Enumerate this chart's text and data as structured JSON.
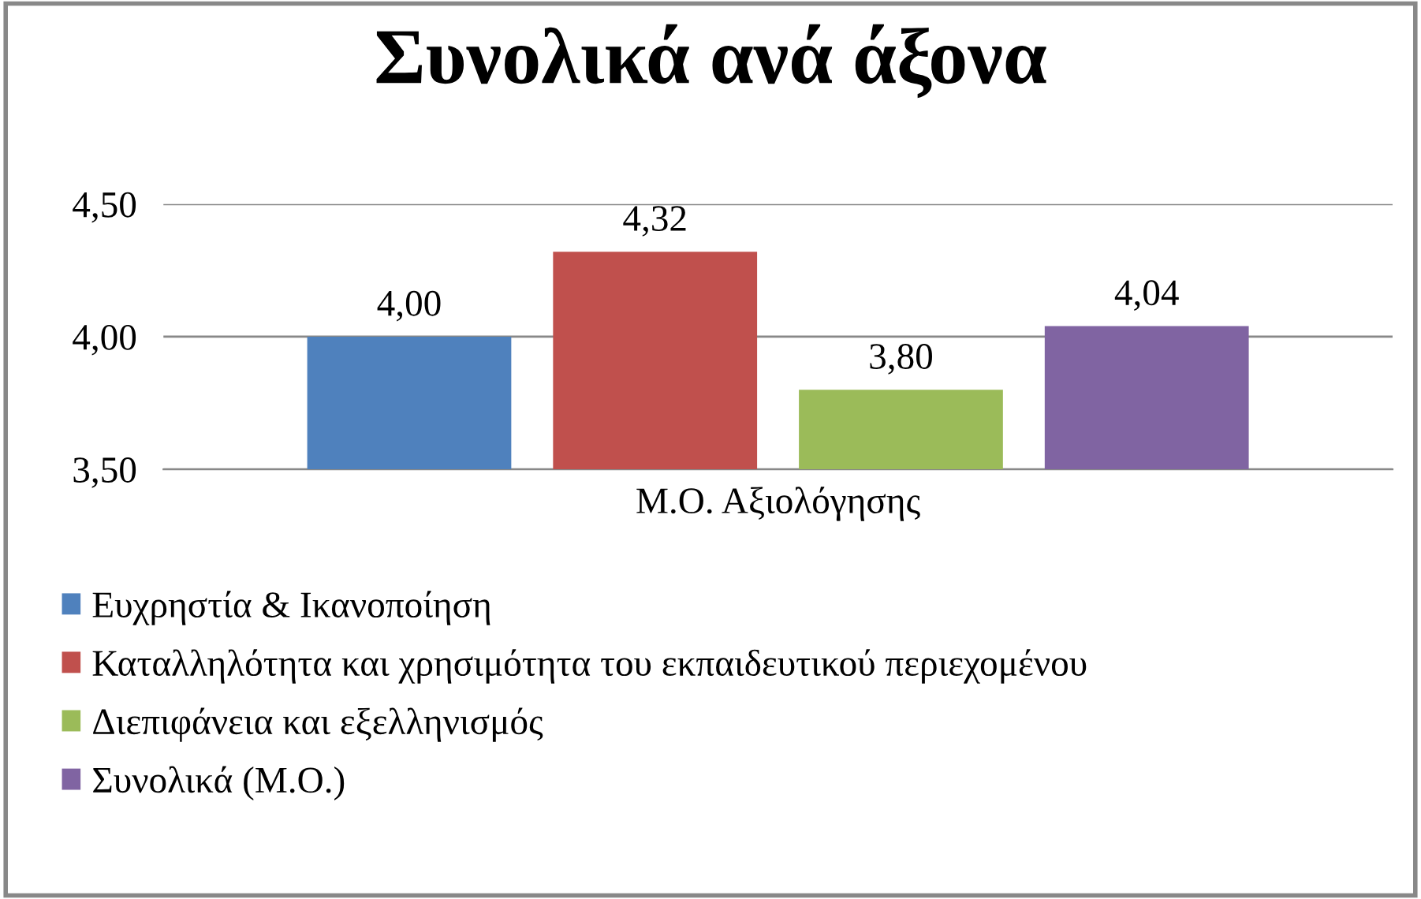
{
  "chart_data": {
    "type": "bar",
    "title": "Συνολικά ανά άξονα",
    "categories": [
      "Μ.Ο. Αξιολόγησης"
    ],
    "series": [
      {
        "name": "Ευχρηστία & Ικανοποίηση",
        "color": "#4f81bd",
        "values": [
          4.0
        ],
        "value_labels": [
          "4,00"
        ]
      },
      {
        "name": "Καταλληλότητα και χρησιμότητα του εκπαιδευτικού περιεχομένου",
        "color": "#c0504d",
        "values": [
          4.32
        ],
        "value_labels": [
          "4,32"
        ]
      },
      {
        "name": "Διεπιφάνεια και εξελληνισμός",
        "color": "#9bbb59",
        "values": [
          3.8
        ],
        "value_labels": [
          "3,80"
        ]
      },
      {
        "name": "Συνολικά (Μ.Ο.)",
        "color": "#8064a2",
        "values": [
          4.04
        ],
        "value_labels": [
          "4,04"
        ]
      }
    ],
    "ylim": [
      3.5,
      4.5
    ],
    "yticks": [
      {
        "value": 3.5,
        "label": "3,50"
      },
      {
        "value": 4.0,
        "label": "4,00"
      },
      {
        "value": 4.5,
        "label": "4,50"
      }
    ],
    "grid": "y",
    "legend": "bottom"
  }
}
